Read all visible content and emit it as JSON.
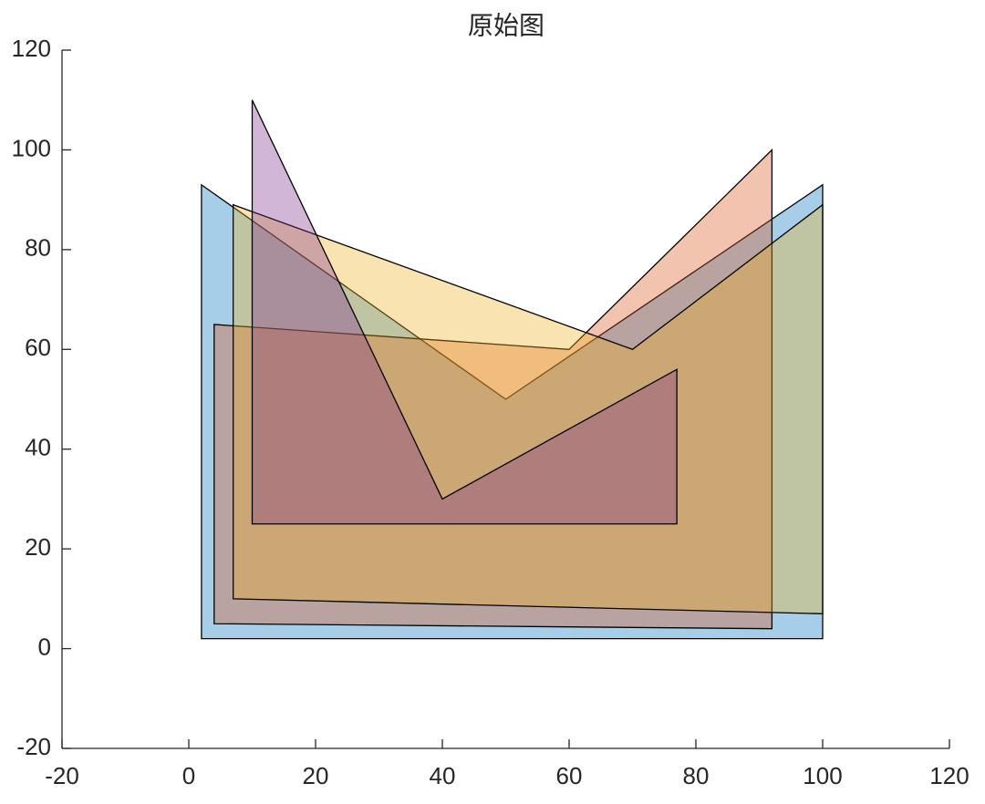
{
  "chart_data": {
    "type": "polygon",
    "title": "原始图",
    "series": [
      {
        "color": "#0072BD",
        "x": [
          2,
          50,
          100,
          100,
          2
        ],
        "y": [
          93,
          50,
          93,
          2,
          2
        ]
      },
      {
        "color": "#D95319",
        "x": [
          4,
          60,
          92,
          92,
          4
        ],
        "y": [
          65,
          60,
          100,
          4,
          5
        ]
      },
      {
        "color": "#EDB120",
        "x": [
          7,
          70,
          100,
          100,
          7
        ],
        "y": [
          89,
          60,
          89,
          7,
          10
        ]
      },
      {
        "color": "#7E2F8E",
        "x": [
          10,
          40,
          77,
          77,
          10
        ],
        "y": [
          110,
          30,
          56,
          25,
          25
        ]
      }
    ],
    "alpha": 0.35,
    "xlim": [
      -20,
      120
    ],
    "ylim": [
      -20,
      120
    ],
    "xticks": [
      -20,
      0,
      20,
      40,
      60,
      80,
      100,
      120
    ],
    "yticks": [
      -20,
      0,
      20,
      40,
      60,
      80,
      100,
      120
    ]
  }
}
